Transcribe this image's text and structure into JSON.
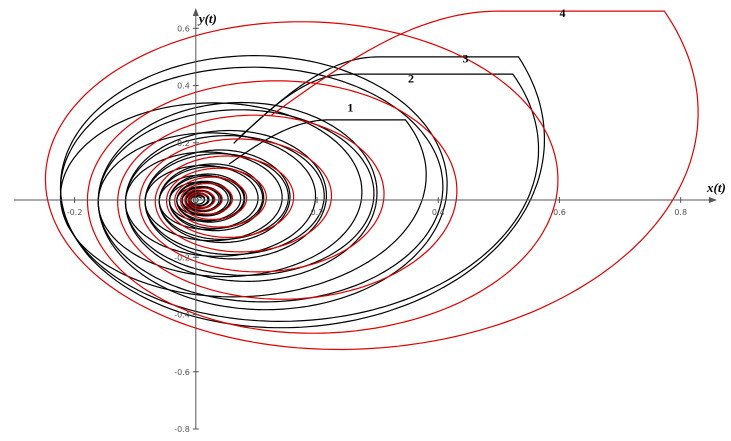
{
  "chart_data": {
    "type": "line",
    "title": "",
    "xlabel": "x(t)",
    "ylabel": "y(t)",
    "xlim": [
      -0.3,
      0.85
    ],
    "ylim": [
      -0.8,
      0.65
    ],
    "x_ticks": [
      {
        "value": -0.2,
        "label": "-0.2"
      },
      {
        "value": 0.2,
        "label": "0.2"
      },
      {
        "value": 0.4,
        "label": "0.4"
      },
      {
        "value": 0.6,
        "label": "0.6"
      },
      {
        "value": 0.8,
        "label": "0.8"
      }
    ],
    "y_ticks": [
      {
        "value": 0.6,
        "label": "0.6"
      },
      {
        "value": 0.4,
        "label": "0.4"
      },
      {
        "value": 0.2,
        "label": "0.2"
      },
      {
        "value": -0.2,
        "label": "-0.2"
      },
      {
        "value": -0.4,
        "label": "-0.4"
      },
      {
        "value": -0.6,
        "label": "-0.6"
      },
      {
        "value": -0.8,
        "label": "-0.8"
      }
    ],
    "grid": false,
    "legend": "none",
    "series": [
      {
        "label": "1",
        "color": "#000000",
        "x0": 0.22,
        "y0": 0.28,
        "x_max": 0.39,
        "y_max": 0.28,
        "x_min": -0.27,
        "y_min": -0.47,
        "label_at": {
          "x": 0.25,
          "y": 0.31
        }
      },
      {
        "label": "2",
        "color": "#000000",
        "x0": 0.25,
        "y0": 0.44,
        "x_max": 0.58,
        "y_max": 0.44,
        "x_min": -0.27,
        "y_min": -0.63,
        "label_at": {
          "x": 0.35,
          "y": 0.41
        }
      },
      {
        "label": "3",
        "color": "#000000",
        "x0": 0.3,
        "y0": 0.5,
        "x_max": 0.59,
        "y_max": 0.5,
        "x_min": -0.27,
        "y_min": -0.68,
        "label_at": {
          "x": 0.44,
          "y": 0.48
        }
      },
      {
        "label": "4",
        "color": "#e00000",
        "x0": 0.5,
        "y0": 0.66,
        "x_max": 0.85,
        "y_max": 0.66,
        "x_min": -0.3,
        "y_min": -0.83,
        "label_at": {
          "x": 0.6,
          "y": 0.64
        }
      }
    ]
  }
}
